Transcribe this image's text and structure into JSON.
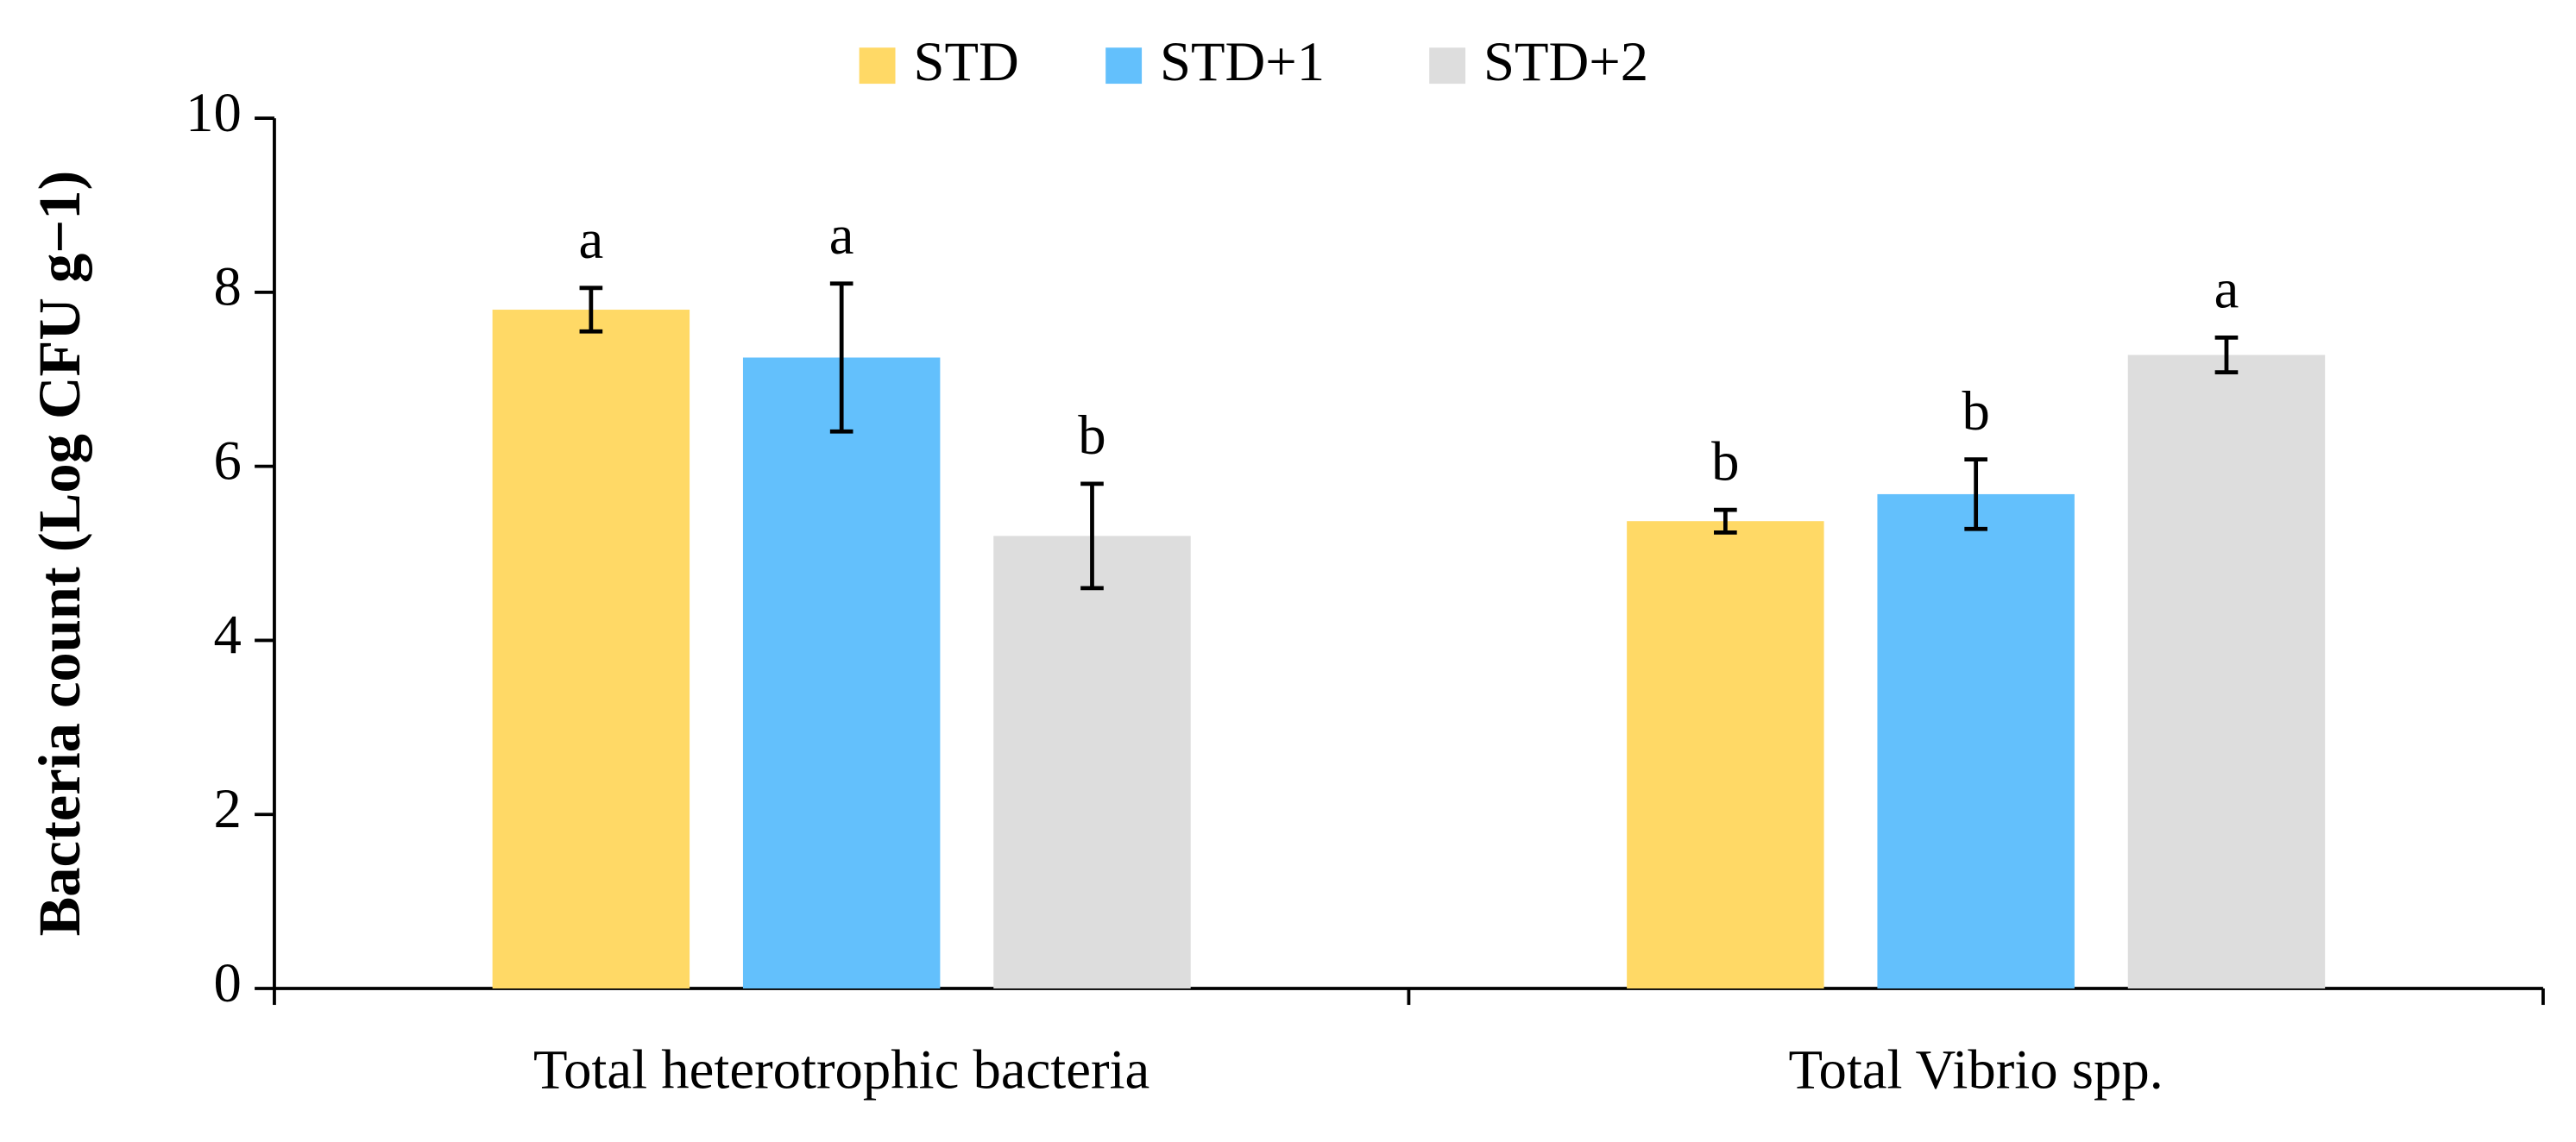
{
  "chart_data": {
    "type": "bar",
    "y_label": "Bacteria count (Log CFU g−1)",
    "categories": [
      "Total heterotrophic bacteria",
      "Total Vibrio spp."
    ],
    "series": [
      {
        "name": "STD",
        "color": "#ffd966",
        "values": [
          7.8,
          5.37
        ],
        "errors": [
          0.25,
          0.13
        ],
        "letters": [
          "a",
          "b"
        ]
      },
      {
        "name": "STD+1",
        "color": "#63c0fc",
        "values": [
          7.25,
          5.68
        ],
        "errors": [
          0.85,
          0.4
        ],
        "letters": [
          "a",
          "b"
        ]
      },
      {
        "name": "STD+2",
        "color": "#dddddd",
        "values": [
          5.2,
          7.28
        ],
        "errors": [
          0.6,
          0.2
        ],
        "letters": [
          "b",
          "a"
        ]
      }
    ],
    "ylim": [
      0,
      10
    ],
    "yticks": [
      0,
      2,
      4,
      6,
      8,
      10
    ],
    "grid": false,
    "legend": "top"
  }
}
